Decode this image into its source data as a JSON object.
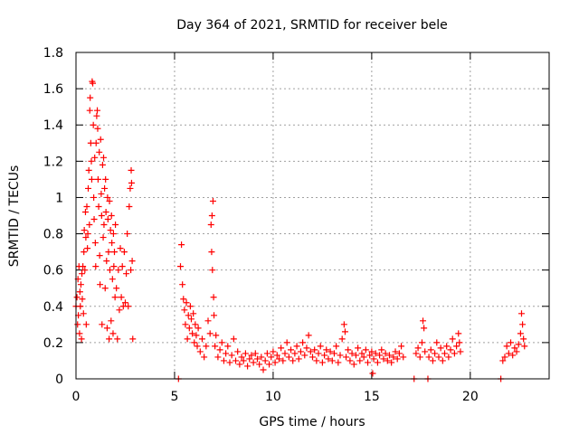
{
  "chart_data": {
    "type": "scatter",
    "title": "Day 364 of 2021, SRMTID for receiver bele",
    "xlabel": "GPS time / hours",
    "ylabel": "SRMTID / TECUs",
    "xlim": [
      0,
      24
    ],
    "ylim": [
      0,
      1.8
    ],
    "xticks": [
      0,
      5,
      10,
      15,
      20
    ],
    "xtick_labels": [
      "0",
      "5",
      "10",
      "15",
      "20"
    ],
    "yticks": [
      0,
      0.2,
      0.4,
      0.6,
      0.8,
      1.0,
      1.2,
      1.4,
      1.6,
      1.8
    ],
    "ytick_labels": [
      "0",
      "0.2",
      "0.4",
      "0.6",
      "0.8",
      "1",
      "1.2",
      "1.4",
      "1.6",
      "1.8"
    ],
    "grid": true,
    "marker": "+",
    "series_color": "#ff0000",
    "series": [
      {
        "name": "SRMTID",
        "points": [
          [
            0.0,
            0.4
          ],
          [
            0.05,
            0.45
          ],
          [
            0.08,
            0.3
          ],
          [
            0.1,
            0.55
          ],
          [
            0.12,
            0.35
          ],
          [
            0.15,
            0.62
          ],
          [
            0.18,
            0.25
          ],
          [
            0.2,
            0.48
          ],
          [
            0.22,
            0.4
          ],
          [
            0.25,
            0.52
          ],
          [
            0.28,
            0.22
          ],
          [
            0.3,
            0.58
          ],
          [
            0.32,
            0.44
          ],
          [
            0.35,
            0.62
          ],
          [
            0.38,
            0.36
          ],
          [
            0.4,
            0.7
          ],
          [
            0.42,
            0.82
          ],
          [
            0.45,
            0.6
          ],
          [
            0.48,
            0.92
          ],
          [
            0.5,
            0.78
          ],
          [
            0.52,
            0.3
          ],
          [
            0.55,
            0.95
          ],
          [
            0.58,
            0.72
          ],
          [
            0.6,
            0.8
          ],
          [
            0.62,
            1.05
          ],
          [
            0.65,
            1.15
          ],
          [
            0.68,
            0.85
          ],
          [
            0.7,
            1.48
          ],
          [
            0.72,
            1.55
          ],
          [
            0.75,
            1.3
          ],
          [
            0.78,
            1.2
          ],
          [
            0.8,
            1.1
          ],
          [
            0.82,
            1.64
          ],
          [
            0.85,
            1.63
          ],
          [
            0.88,
            1.4
          ],
          [
            0.9,
            1.0
          ],
          [
            0.92,
            0.88
          ],
          [
            0.95,
            1.22
          ],
          [
            0.98,
            0.75
          ],
          [
            1.0,
            0.62
          ],
          [
            1.02,
            1.3
          ],
          [
            1.05,
            1.45
          ],
          [
            1.08,
            1.48
          ],
          [
            1.1,
            1.38
          ],
          [
            1.12,
            1.1
          ],
          [
            1.15,
            0.95
          ],
          [
            1.18,
            1.25
          ],
          [
            1.2,
            0.68
          ],
          [
            1.22,
            0.52
          ],
          [
            1.25,
            1.32
          ],
          [
            1.28,
            1.02
          ],
          [
            1.3,
            0.9
          ],
          [
            1.32,
            0.3
          ],
          [
            1.35,
            1.18
          ],
          [
            1.38,
            0.78
          ],
          [
            1.4,
            1.22
          ],
          [
            1.42,
            0.85
          ],
          [
            1.45,
            1.05
          ],
          [
            1.48,
            0.5
          ],
          [
            1.5,
            1.1
          ],
          [
            1.52,
            0.92
          ],
          [
            1.55,
            0.65
          ],
          [
            1.58,
            0.28
          ],
          [
            1.6,
            1.0
          ],
          [
            1.62,
            0.88
          ],
          [
            1.65,
            0.7
          ],
          [
            1.68,
            0.22
          ],
          [
            1.7,
            0.98
          ],
          [
            1.72,
            0.6
          ],
          [
            1.75,
            0.82
          ],
          [
            1.78,
            0.32
          ],
          [
            1.8,
            0.9
          ],
          [
            1.82,
            0.75
          ],
          [
            1.85,
            0.55
          ],
          [
            1.88,
            0.25
          ],
          [
            1.9,
            0.8
          ],
          [
            1.92,
            0.62
          ],
          [
            1.95,
            0.7
          ],
          [
            1.98,
            0.45
          ],
          [
            2.0,
            0.85
          ],
          [
            2.05,
            0.5
          ],
          [
            2.1,
            0.22
          ],
          [
            2.15,
            0.6
          ],
          [
            2.2,
            0.38
          ],
          [
            2.25,
            0.72
          ],
          [
            2.3,
            0.45
          ],
          [
            2.35,
            0.62
          ],
          [
            2.4,
            0.4
          ],
          [
            2.45,
            0.7
          ],
          [
            2.5,
            0.42
          ],
          [
            2.55,
            0.58
          ],
          [
            2.6,
            0.8
          ],
          [
            2.65,
            0.4
          ],
          [
            2.7,
            0.95
          ],
          [
            2.75,
            1.05
          ],
          [
            2.78,
            0.6
          ],
          [
            2.8,
            1.15
          ],
          [
            2.82,
            1.08
          ],
          [
            2.85,
            0.65
          ],
          [
            2.88,
            0.22
          ],
          [
            5.2,
            0.0
          ],
          [
            5.3,
            0.62
          ],
          [
            5.35,
            0.74
          ],
          [
            5.4,
            0.52
          ],
          [
            5.45,
            0.44
          ],
          [
            5.5,
            0.38
          ],
          [
            5.55,
            0.3
          ],
          [
            5.6,
            0.42
          ],
          [
            5.65,
            0.22
          ],
          [
            5.7,
            0.35
          ],
          [
            5.75,
            0.28
          ],
          [
            5.8,
            0.4
          ],
          [
            5.85,
            0.33
          ],
          [
            5.9,
            0.25
          ],
          [
            5.95,
            0.36
          ],
          [
            6.0,
            0.2
          ],
          [
            6.05,
            0.3
          ],
          [
            6.1,
            0.24
          ],
          [
            6.15,
            0.18
          ],
          [
            6.2,
            0.28
          ],
          [
            6.3,
            0.15
          ],
          [
            6.4,
            0.22
          ],
          [
            6.5,
            0.12
          ],
          [
            6.6,
            0.18
          ],
          [
            6.7,
            0.32
          ],
          [
            6.8,
            0.25
          ],
          [
            6.85,
            0.85
          ],
          [
            6.88,
            0.7
          ],
          [
            6.9,
            0.9
          ],
          [
            6.92,
            0.6
          ],
          [
            6.95,
            0.98
          ],
          [
            6.98,
            0.45
          ],
          [
            7.0,
            0.35
          ],
          [
            7.05,
            0.18
          ],
          [
            7.1,
            0.24
          ],
          [
            7.2,
            0.12
          ],
          [
            7.3,
            0.16
          ],
          [
            7.4,
            0.2
          ],
          [
            7.5,
            0.1
          ],
          [
            7.6,
            0.14
          ],
          [
            7.7,
            0.18
          ],
          [
            7.8,
            0.09
          ],
          [
            7.9,
            0.13
          ],
          [
            8.0,
            0.22
          ],
          [
            8.1,
            0.1
          ],
          [
            8.2,
            0.15
          ],
          [
            8.3,
            0.08
          ],
          [
            8.4,
            0.12
          ],
          [
            8.5,
            0.1
          ],
          [
            8.6,
            0.14
          ],
          [
            8.7,
            0.07
          ],
          [
            8.8,
            0.11
          ],
          [
            8.9,
            0.13
          ],
          [
            9.0,
            0.09
          ],
          [
            9.1,
            0.14
          ],
          [
            9.2,
            0.11
          ],
          [
            9.3,
            0.08
          ],
          [
            9.4,
            0.12
          ],
          [
            9.5,
            0.05
          ],
          [
            9.6,
            0.1
          ],
          [
            9.7,
            0.14
          ],
          [
            9.8,
            0.08
          ],
          [
            9.9,
            0.12
          ],
          [
            10.0,
            0.15
          ],
          [
            10.1,
            0.09
          ],
          [
            10.2,
            0.13
          ],
          [
            10.3,
            0.11
          ],
          [
            10.4,
            0.17
          ],
          [
            10.5,
            0.1
          ],
          [
            10.6,
            0.14
          ],
          [
            10.7,
            0.2
          ],
          [
            10.8,
            0.12
          ],
          [
            10.9,
            0.16
          ],
          [
            11.0,
            0.1
          ],
          [
            11.1,
            0.14
          ],
          [
            11.2,
            0.18
          ],
          [
            11.3,
            0.11
          ],
          [
            11.4,
            0.15
          ],
          [
            11.5,
            0.2
          ],
          [
            11.6,
            0.13
          ],
          [
            11.7,
            0.17
          ],
          [
            11.8,
            0.24
          ],
          [
            11.9,
            0.15
          ],
          [
            12.0,
            0.12
          ],
          [
            12.1,
            0.16
          ],
          [
            12.2,
            0.1
          ],
          [
            12.3,
            0.14
          ],
          [
            12.4,
            0.18
          ],
          [
            12.5,
            0.09
          ],
          [
            12.6,
            0.13
          ],
          [
            12.7,
            0.16
          ],
          [
            12.8,
            0.11
          ],
          [
            12.9,
            0.15
          ],
          [
            13.0,
            0.1
          ],
          [
            13.1,
            0.14
          ],
          [
            13.2,
            0.18
          ],
          [
            13.3,
            0.09
          ],
          [
            13.4,
            0.13
          ],
          [
            13.5,
            0.22
          ],
          [
            13.6,
            0.3
          ],
          [
            13.65,
            0.26
          ],
          [
            13.7,
            0.12
          ],
          [
            13.8,
            0.16
          ],
          [
            13.9,
            0.1
          ],
          [
            14.0,
            0.14
          ],
          [
            14.1,
            0.08
          ],
          [
            14.2,
            0.13
          ],
          [
            14.3,
            0.17
          ],
          [
            14.4,
            0.1
          ],
          [
            14.5,
            0.14
          ],
          [
            14.6,
            0.12
          ],
          [
            14.7,
            0.16
          ],
          [
            14.8,
            0.09
          ],
          [
            14.9,
            0.13
          ],
          [
            15.0,
            0.15
          ],
          [
            15.05,
            0.03
          ],
          [
            15.1,
            0.11
          ],
          [
            15.2,
            0.14
          ],
          [
            15.3,
            0.09
          ],
          [
            15.4,
            0.13
          ],
          [
            15.5,
            0.16
          ],
          [
            15.6,
            0.11
          ],
          [
            15.7,
            0.14
          ],
          [
            15.8,
            0.1
          ],
          [
            15.9,
            0.13
          ],
          [
            16.0,
            0.09
          ],
          [
            16.1,
            0.12
          ],
          [
            16.2,
            0.15
          ],
          [
            16.3,
            0.11
          ],
          [
            16.4,
            0.14
          ],
          [
            16.5,
            0.18
          ],
          [
            16.6,
            0.12
          ],
          [
            17.15,
            0.0
          ],
          [
            17.25,
            0.14
          ],
          [
            17.35,
            0.17
          ],
          [
            17.45,
            0.12
          ],
          [
            17.55,
            0.2
          ],
          [
            17.6,
            0.32
          ],
          [
            17.65,
            0.28
          ],
          [
            17.7,
            0.15
          ],
          [
            17.85,
            0.0
          ],
          [
            17.9,
            0.12
          ],
          [
            18.0,
            0.16
          ],
          [
            18.1,
            0.1
          ],
          [
            18.2,
            0.14
          ],
          [
            18.3,
            0.2
          ],
          [
            18.4,
            0.12
          ],
          [
            18.5,
            0.17
          ],
          [
            18.6,
            0.1
          ],
          [
            18.7,
            0.14
          ],
          [
            18.8,
            0.18
          ],
          [
            18.9,
            0.12
          ],
          [
            19.0,
            0.16
          ],
          [
            19.1,
            0.22
          ],
          [
            19.2,
            0.14
          ],
          [
            19.3,
            0.18
          ],
          [
            19.4,
            0.25
          ],
          [
            19.45,
            0.2
          ],
          [
            19.5,
            0.15
          ],
          [
            21.55,
            0.0
          ],
          [
            21.65,
            0.1
          ],
          [
            21.75,
            0.12
          ],
          [
            21.85,
            0.18
          ],
          [
            21.95,
            0.14
          ],
          [
            22.05,
            0.2
          ],
          [
            22.15,
            0.13
          ],
          [
            22.25,
            0.17
          ],
          [
            22.35,
            0.15
          ],
          [
            22.45,
            0.19
          ],
          [
            22.55,
            0.25
          ],
          [
            22.6,
            0.36
          ],
          [
            22.65,
            0.3
          ],
          [
            22.7,
            0.22
          ],
          [
            22.75,
            0.18
          ]
        ]
      }
    ]
  }
}
